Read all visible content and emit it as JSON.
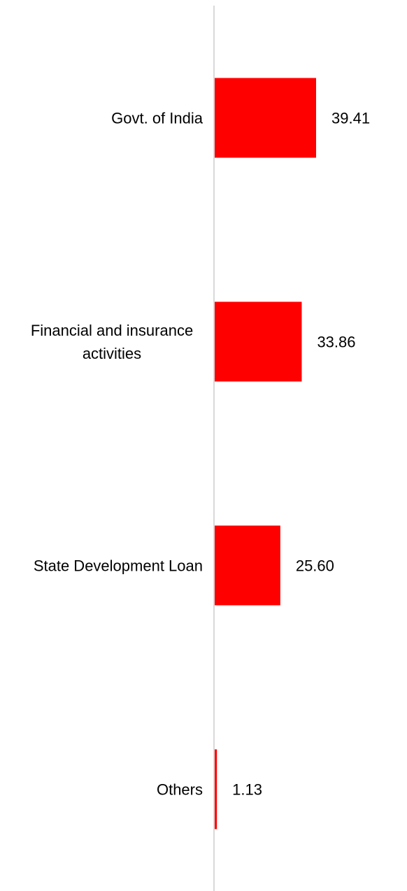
{
  "chart_data": {
    "type": "bar",
    "orientation": "horizontal",
    "categories": [
      "Govt. of India",
      "Financial and insurance activities",
      "State Development Loan",
      "Others"
    ],
    "category_lines": [
      [
        "Govt. of India"
      ],
      [
        "Financial and insurance",
        "activities"
      ],
      [
        "State Development Loan"
      ],
      [
        "Others"
      ]
    ],
    "values": [
      39.41,
      33.86,
      25.6,
      1.13
    ],
    "value_labels": [
      "39.41",
      "33.86",
      "25.60",
      "1.13"
    ],
    "title": "",
    "xlabel": "",
    "ylabel": "",
    "xlim": [
      0,
      100
    ],
    "grid": false,
    "legend": "none",
    "bar_color": "#ff0000",
    "axis_color": "#d9d9d9"
  }
}
